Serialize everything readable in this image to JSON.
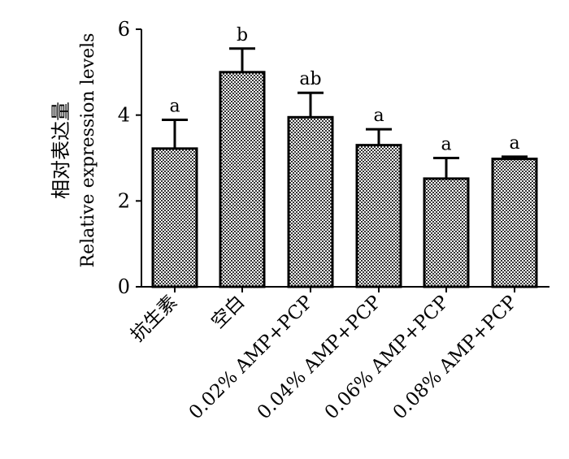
{
  "chart_data": {
    "type": "bar",
    "categories": [
      "抗生素",
      "空白",
      "0.02% AMP+PCP",
      "0.04% AMP+PCP",
      "0.06% AMP+PCP",
      "0.08% AMP+PCP"
    ],
    "values": [
      3.22,
      5.0,
      3.95,
      3.3,
      2.52,
      2.98
    ],
    "errors": [
      0.67,
      0.55,
      0.57,
      0.37,
      0.48,
      0.05
    ],
    "significance": [
      "a",
      "b",
      "ab",
      "a",
      "a",
      "a"
    ],
    "ylabel_cn": "相对表达量",
    "ylabel_en": "Relative expression levels",
    "yticks": [
      0,
      2,
      4,
      6
    ],
    "ylim": [
      0,
      6
    ],
    "grid": false,
    "bar_colors": [
      "#555555",
      "#888888",
      "#777777",
      "#999999",
      "#888888",
      "#777777"
    ]
  }
}
